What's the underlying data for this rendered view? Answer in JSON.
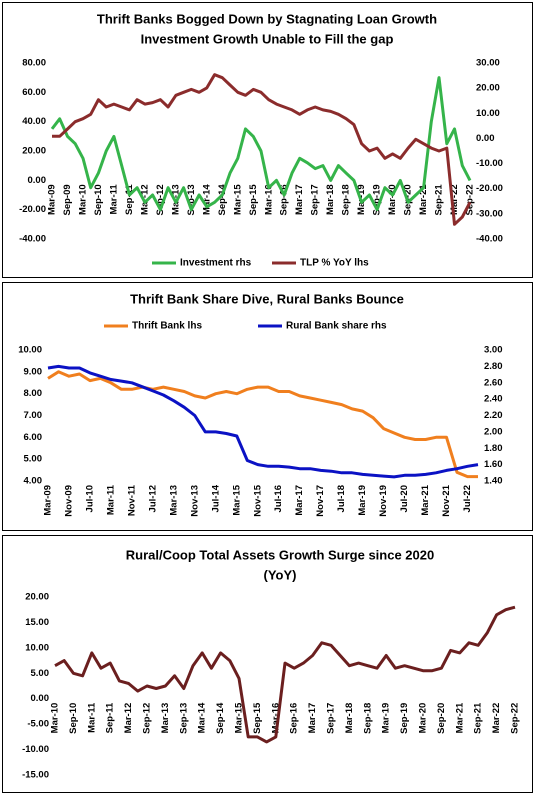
{
  "chart_data": [
    {
      "type": "line",
      "title": "Thrift Banks Bogged Down by Stagnating Loan Growth",
      "subtitle": "Investment Growth Unable to Fill the gap",
      "categories": [
        "Mar-09",
        null,
        "Sep-09",
        null,
        "Mar-10",
        null,
        "Sep-10",
        null,
        "Mar-11",
        null,
        "Sep-11",
        null,
        "Mar-12",
        null,
        "Sep-12",
        null,
        "Mar-13",
        null,
        "Sep-13",
        null,
        "Mar-14",
        null,
        "Sep-14",
        null,
        "Mar-15",
        null,
        "Sep-15",
        null,
        "Mar-16",
        null,
        "Sep-16",
        null,
        "Mar-17",
        null,
        "Sep-17",
        null,
        "Mar-18",
        null,
        "Sep-18",
        null,
        "Mar-19",
        null,
        "Sep-19",
        null,
        "Mar-20",
        null,
        "Sep-20",
        null,
        "Mar-21",
        null,
        "Sep-21",
        null,
        "Mar-22",
        null,
        "Sep-22"
      ],
      "series": [
        {
          "name": "Investment rhs",
          "color": "#35b44a",
          "axis": "y2",
          "values": [
            3.8,
            7.8,
            0.8,
            -2.1,
            -7.9,
            -19.6,
            -13.8,
            -5,
            0.8,
            -10.8,
            -22.5,
            -19.6,
            -25.4,
            -22.5,
            -28.3,
            -19.6,
            -25.4,
            -19.6,
            -28.3,
            -22.5,
            -27.2,
            -25.4,
            -22.5,
            -13.8,
            -7.9,
            3.8,
            0.8,
            -5,
            -19.6,
            -16.7,
            -22.5,
            -13.8,
            -7.9,
            -9.7,
            -12,
            -10.8,
            -16.7,
            -10.8,
            -13.8,
            -16.7,
            -25.4,
            -22.5,
            -28.3,
            -19.6,
            -22.5,
            -16.7,
            -25.4,
            -22.5,
            -19.6,
            6.7,
            24.2,
            -2.1,
            3.8,
            -10.8,
            -16.7
          ]
        },
        {
          "name": "TLP % YoY lhs",
          "color": "#8b2c2c",
          "axis": "y",
          "values": [
            30,
            30,
            35,
            40,
            42,
            45,
            55,
            50,
            52,
            50,
            48,
            55,
            52,
            53,
            55,
            50,
            58,
            60,
            62,
            60,
            63,
            72,
            70,
            65,
            60,
            58,
            62,
            60,
            55,
            52,
            50,
            48,
            45,
            48,
            50,
            48,
            47,
            45,
            42,
            38,
            25,
            20,
            22,
            15,
            18,
            15,
            22,
            28,
            25,
            22,
            20,
            22,
            -30,
            -25,
            -15
          ]
        }
      ],
      "ylim": [
        -40,
        80
      ],
      "yticks": [
        {
          "value": -40,
          "label": "-40.00"
        },
        {
          "value": -20,
          "label": "-20.00"
        },
        {
          "value": 0,
          "label": "0.00"
        },
        {
          "value": 20,
          "label": "20.00"
        },
        {
          "value": 40,
          "label": "40.00"
        },
        {
          "value": 60,
          "label": "60.00"
        },
        {
          "value": 80,
          "label": "80.00"
        }
      ],
      "y2lim": [
        -40,
        30
      ],
      "y2ticks": [
        {
          "value": -40,
          "label": "-40.00"
        },
        {
          "value": -30,
          "label": "-30.00"
        },
        {
          "value": -20,
          "label": "-20.00"
        },
        {
          "value": -10,
          "label": "-10.00"
        },
        {
          "value": 0,
          "label": "0.00"
        },
        {
          "value": 10,
          "label": "10.00"
        },
        {
          "value": 20,
          "label": "20.00"
        },
        {
          "value": 30,
          "label": "30.00"
        }
      ],
      "legend": "bottom"
    },
    {
      "type": "line",
      "title": "Thrift Bank Share Dive, Rural Banks Bounce",
      "categories": [
        "Mar-09",
        null,
        "Nov-09",
        null,
        "Jul-10",
        null,
        "Mar-11",
        null,
        "Nov-11",
        null,
        "Jul-12",
        null,
        "Mar-13",
        null,
        "Nov-13",
        null,
        "Jul-14",
        null,
        "Mar-15",
        null,
        "Nov-15",
        null,
        "Jul-16",
        null,
        "Mar-17",
        null,
        "Nov-17",
        null,
        "Jul-18",
        null,
        "Mar-19",
        null,
        "Nov-19",
        null,
        "Jul-20",
        null,
        "Mar-21",
        null,
        "Nov-21",
        null,
        "Jul-22",
        null
      ],
      "series": [
        {
          "name": "Thrift Bank lhs",
          "color": "#f07f1e",
          "axis": "y",
          "values": [
            8.7,
            9.0,
            8.8,
            8.9,
            8.6,
            8.7,
            8.5,
            8.2,
            8.2,
            8.3,
            8.2,
            8.3,
            8.2,
            8.1,
            7.9,
            7.8,
            8.0,
            8.1,
            8.0,
            8.2,
            8.3,
            8.3,
            8.1,
            8.1,
            7.9,
            7.8,
            7.7,
            7.6,
            7.5,
            7.3,
            7.2,
            6.9,
            6.4,
            6.2,
            6.0,
            5.9,
            5.9,
            6.0,
            6.0,
            4.4,
            4.2,
            4.2
          ]
        },
        {
          "name": "Rural Bank share rhs",
          "color": "#0b12c4",
          "axis": "y2",
          "values": [
            2.78,
            2.8,
            2.78,
            2.78,
            2.72,
            2.68,
            2.64,
            2.62,
            2.6,
            2.55,
            2.5,
            2.45,
            2.38,
            2.3,
            2.2,
            2.0,
            2.0,
            1.98,
            1.95,
            1.65,
            1.6,
            1.58,
            1.58,
            1.57,
            1.55,
            1.55,
            1.53,
            1.52,
            1.5,
            1.5,
            1.48,
            1.47,
            1.46,
            1.45,
            1.47,
            1.47,
            1.48,
            1.5,
            1.53,
            1.55,
            1.58,
            1.6
          ]
        }
      ],
      "ylim": [
        4,
        10
      ],
      "yticks": [
        {
          "value": 4,
          "label": "4.00"
        },
        {
          "value": 5,
          "label": "5.00"
        },
        {
          "value": 6,
          "label": "6.00"
        },
        {
          "value": 7,
          "label": "7.00"
        },
        {
          "value": 8,
          "label": "8.00"
        },
        {
          "value": 9,
          "label": "9.00"
        },
        {
          "value": 10,
          "label": "10.00"
        }
      ],
      "y2lim": [
        1.4,
        3.0
      ],
      "y2ticks": [
        {
          "value": 1.4,
          "label": "1.40"
        },
        {
          "value": 1.6,
          "label": "1.60"
        },
        {
          "value": 1.8,
          "label": "1.80"
        },
        {
          "value": 2.0,
          "label": "2.00"
        },
        {
          "value": 2.2,
          "label": "2.20"
        },
        {
          "value": 2.4,
          "label": "2.40"
        },
        {
          "value": 2.6,
          "label": "2.60"
        },
        {
          "value": 2.8,
          "label": "2.80"
        },
        {
          "value": 3.0,
          "label": "3.00"
        }
      ],
      "legend": "top"
    },
    {
      "type": "line",
      "title": "Rural/Coop Total Assets Growth Surge since 2020",
      "subtitle": "(YoY)",
      "categories": [
        "Mar-10",
        null,
        "Sep-10",
        null,
        "Mar-11",
        null,
        "Sep-11",
        null,
        "Mar-12",
        null,
        "Sep-12",
        null,
        "Mar-13",
        null,
        "Sep-13",
        null,
        "Mar-14",
        null,
        "Sep-14",
        null,
        "Mar-15",
        null,
        "Sep-15",
        null,
        "Mar-16",
        null,
        "Sep-16",
        null,
        "Mar-17",
        null,
        "Sep-17",
        null,
        "Mar-18",
        null,
        "Sep-18",
        null,
        "Mar-19",
        null,
        "Sep-19",
        null,
        "Mar-20",
        null,
        "Sep-20",
        null,
        "Mar-21",
        null,
        "Sep-21",
        null,
        "Mar-22",
        null,
        "Sep-22"
      ],
      "values": [
        6.5,
        7.5,
        5,
        4.5,
        9,
        6,
        7,
        3.5,
        3,
        1.5,
        2.5,
        2,
        2.5,
        4.5,
        2,
        6.5,
        9,
        6,
        9,
        7.5,
        4,
        -7.5,
        -7.5,
        -8.5,
        -7.5,
        7,
        6,
        7,
        8.5,
        11,
        10.5,
        8.5,
        6.5,
        7,
        6.5,
        6,
        8.5,
        6,
        6.5,
        6,
        5.5,
        5.5,
        6,
        9.5,
        9,
        11,
        10.5,
        13,
        16.5,
        17.5,
        18
      ],
      "color": "#6b1f1f",
      "ylim": [
        -15,
        20
      ],
      "yticks": [
        {
          "value": -15,
          "label": "-15.00"
        },
        {
          "value": -10,
          "label": "-10.00"
        },
        {
          "value": -5,
          "label": "-5.00"
        },
        {
          "value": 0,
          "label": "0.00"
        },
        {
          "value": 5,
          "label": "5.00"
        },
        {
          "value": 10,
          "label": "10.00"
        },
        {
          "value": 15,
          "label": "15.00"
        },
        {
          "value": 20,
          "label": "20.00"
        }
      ]
    }
  ]
}
